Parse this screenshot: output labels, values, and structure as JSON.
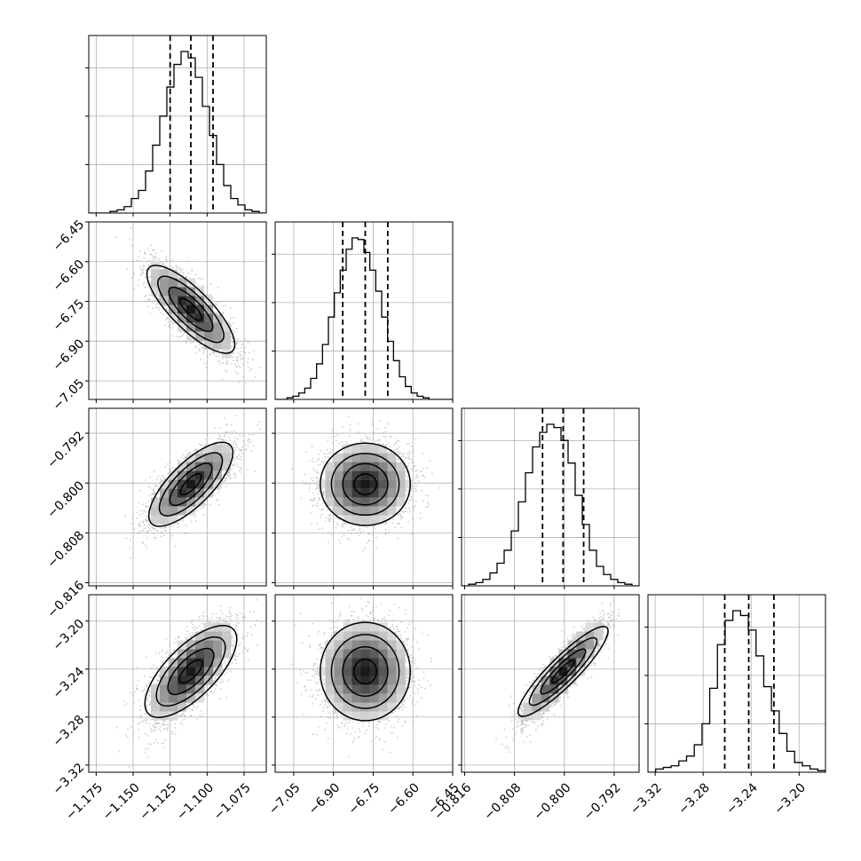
{
  "chart_data": {
    "type": "corner",
    "parameters": [
      {
        "index": 0,
        "range": [
          -1.18,
          -1.06
        ],
        "ticks": [
          -1.175,
          -1.15,
          -1.125,
          -1.1,
          -1.075
        ],
        "tick_labels": [
          "−1.175",
          "−1.150",
          "−1.125",
          "−1.100",
          "−1.075"
        ],
        "quantiles": [
          -1.125,
          -1.111,
          -1.096
        ]
      },
      {
        "index": 1,
        "range": [
          -7.12,
          -6.45
        ],
        "ticks": [
          -7.05,
          -6.9,
          -6.75,
          -6.6,
          -6.45
        ],
        "tick_labels": [
          "−7.05",
          "−6.90",
          "−6.75",
          "−6.60",
          "−6.45"
        ],
        "quantiles": [
          -6.865,
          -6.78,
          -6.695
        ]
      },
      {
        "index": 2,
        "range": [
          -0.8165,
          -0.788
        ],
        "ticks": [
          -0.816,
          -0.808,
          -0.8,
          -0.792
        ],
        "tick_labels": [
          "−0.816",
          "−0.808",
          "−0.800",
          "−0.792"
        ],
        "quantiles": [
          -0.8035,
          -0.8002,
          -0.7969
        ]
      },
      {
        "index": 3,
        "range": [
          -3.326,
          -3.178
        ],
        "ticks": [
          -3.32,
          -3.28,
          -3.24,
          -3.2
        ],
        "tick_labels": [
          "−3.32",
          "−3.28",
          "−3.24",
          "−3.20"
        ],
        "quantiles": [
          -3.262,
          -3.242,
          -3.221
        ]
      }
    ],
    "histograms": [
      [
        0,
        0,
        0,
        1,
        2,
        4,
        9,
        14,
        26,
        42,
        60,
        78,
        92,
        100,
        96,
        84,
        66,
        48,
        30,
        17,
        9,
        5,
        2,
        1,
        0
      ],
      [
        0,
        0,
        1,
        2,
        4,
        7,
        13,
        22,
        34,
        51,
        66,
        80,
        93,
        100,
        99,
        91,
        80,
        67,
        51,
        36,
        24,
        14,
        8,
        4,
        2,
        1,
        0,
        0,
        0,
        0
      ],
      [
        0,
        1,
        2,
        4,
        8,
        14,
        22,
        34,
        52,
        70,
        86,
        95,
        100,
        98,
        90,
        76,
        56,
        38,
        22,
        12,
        7,
        4,
        2,
        1,
        0
      ],
      [
        0,
        2,
        3,
        4,
        7,
        10,
        17,
        30,
        52,
        79,
        94,
        100,
        97,
        88,
        72,
        53,
        38,
        24,
        13,
        6,
        4,
        2,
        1
      ]
    ],
    "correlations": {
      "1-0": -0.8,
      "2-0": 0.75,
      "2-1": 0.05,
      "3-0": 0.7,
      "3-1": 0.0,
      "3-2": 0.9
    },
    "sample_points_per_panel": 2500,
    "grid": true,
    "colors": {
      "line": "#000000",
      "points": "#a0a0a0",
      "quantile": "#000000"
    }
  }
}
